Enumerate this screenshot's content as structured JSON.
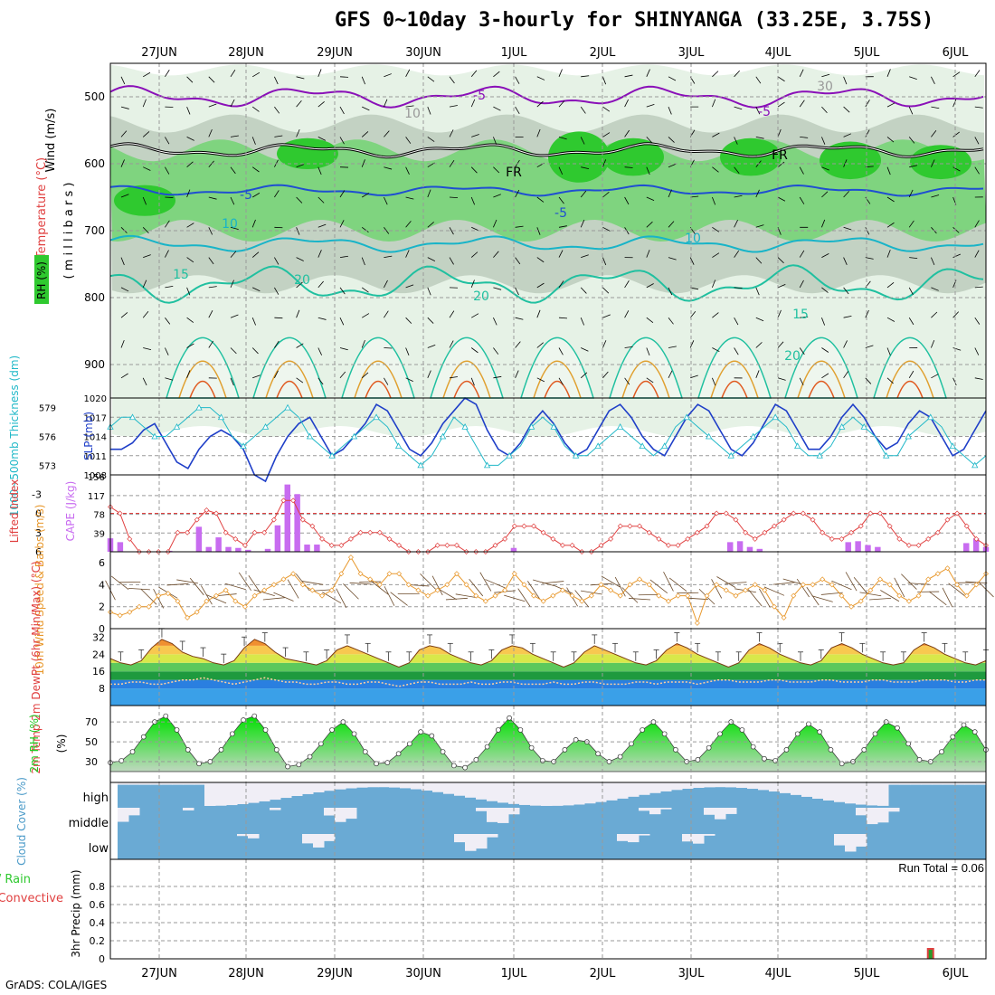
{
  "title": "GFS 0~10day 3-hourly for SHINYANGA (33.25E, 3.75S)",
  "credit": "GrADS: COLA/IGES",
  "colors": {
    "rh_light": "#e6f2e6",
    "rh_mid": "#7fd47f",
    "rh_dark": "#2fc92f",
    "rh_gray": "#c3d2c3",
    "temp_blue": "#1f4fd1",
    "temp_cyan": "#18b4c8",
    "temp_teal": "#20c0a0",
    "temp_orange": "#e0a030",
    "temp_red": "#e05a20",
    "purple": "#8a10b8",
    "cape": "#c86cf0",
    "li": "#e04040",
    "slp": "#1f3fc8",
    "thick": "#20b8c8",
    "wind": "#e8982c",
    "barb": "#6b4a2a",
    "cloud": "#6aaad4",
    "rh2m": "#22c822"
  },
  "chart_data": [
    {
      "type": "heatmap",
      "name": "upper",
      "ylabel_parts": [
        "Wind (m/s)",
        "Temperature (°C)",
        "RH (%)"
      ],
      "ylabel_units": "( m i l l i b a r s )",
      "x_ticks": [
        "27JUN",
        "28JUN",
        "29JUN",
        "30JUN",
        "1JUL",
        "2JUL",
        "3JUL",
        "4JUL",
        "5JUL",
        "6JUL"
      ],
      "y_ticks": [
        "500",
        "600",
        "700",
        "800",
        "900"
      ],
      "contour_labels": [
        "-5",
        "-5",
        "-5",
        "-5",
        "10",
        "10",
        "15",
        "20",
        "20",
        "15",
        "20",
        "30",
        "10",
        "FR",
        "FR"
      ]
    },
    {
      "type": "line",
      "name": "slp_thickness",
      "ylabel_left": "1000~500mb Thickness (dm)",
      "ylabel_right": "SLP (mb)",
      "left_ticks": [
        "579",
        "576",
        "573"
      ],
      "right_ticks": [
        "1020",
        "1017",
        "1014",
        "1011",
        "1008"
      ],
      "series": [
        {
          "name": "SLP",
          "values": [
            1012,
            1012,
            1013,
            1015,
            1016,
            1013,
            1010,
            1009,
            1012,
            1014,
            1015,
            1014,
            1012,
            1008,
            1007,
            1011,
            1014,
            1016,
            1017,
            1014,
            1011,
            1012,
            1014,
            1016,
            1019,
            1018,
            1015,
            1012,
            1011,
            1013,
            1016,
            1018,
            1020,
            1019,
            1015,
            1012,
            1011,
            1013,
            1016,
            1018,
            1016,
            1013,
            1011,
            1012,
            1015,
            1018,
            1019,
            1017,
            1014,
            1012,
            1011,
            1014,
            1017,
            1019,
            1018,
            1015,
            1012,
            1011,
            1013,
            1016,
            1019,
            1018,
            1015,
            1012,
            1012,
            1014,
            1017,
            1019,
            1017,
            1014,
            1012,
            1013,
            1016,
            1018,
            1017,
            1014,
            1011,
            1012,
            1015,
            1018
          ]
        },
        {
          "name": "Thickness",
          "values": [
            577,
            578,
            578,
            577,
            576,
            576,
            577,
            578,
            579,
            579,
            578,
            576,
            575,
            576,
            577,
            578,
            579,
            578,
            576,
            575,
            574,
            575,
            576,
            577,
            578,
            577,
            575,
            574,
            573,
            574,
            576,
            578,
            577,
            575,
            573,
            573,
            574,
            575,
            577,
            578,
            577,
            575,
            574,
            574,
            575,
            576,
            577,
            576,
            575,
            574,
            575,
            577,
            578,
            577,
            576,
            575,
            574,
            575,
            576,
            577,
            578,
            577,
            575,
            574,
            574,
            575,
            577,
            578,
            577,
            576,
            574,
            574,
            576,
            577,
            578,
            577,
            575,
            574,
            573,
            574
          ]
        }
      ]
    },
    {
      "type": "bar",
      "name": "cape_li",
      "ylabel_left": "Lifted Index",
      "ylabel_right": "CAPE (J/kg)",
      "li_ticks": [
        "-3",
        "0",
        "3",
        "6"
      ],
      "cape_ticks": [
        "156",
        "117",
        "78",
        "39"
      ],
      "series": [
        {
          "name": "CAPE",
          "values": [
            28,
            20,
            0,
            0,
            0,
            0,
            2,
            0,
            0,
            52,
            10,
            30,
            10,
            8,
            4,
            0,
            6,
            55,
            140,
            120,
            15,
            15,
            0,
            0,
            0,
            0,
            0,
            0,
            0,
            0,
            0,
            0,
            0,
            0,
            0,
            0,
            0,
            0,
            0,
            0,
            0,
            8,
            0,
            0,
            0,
            0,
            0,
            0,
            0,
            0,
            0,
            0,
            0,
            0,
            0,
            0,
            0,
            0,
            0,
            0,
            0,
            0,
            0,
            20,
            22,
            10,
            6,
            0,
            0,
            0,
            0,
            0,
            0,
            0,
            0,
            20,
            22,
            14,
            10,
            0,
            0,
            0,
            0,
            0,
            0,
            0,
            0,
            18,
            28,
            10
          ]
        },
        {
          "name": "Lifted Index",
          "values": [
            -1,
            0,
            4,
            6,
            6,
            6,
            6,
            3,
            3,
            1,
            -0.5,
            0,
            3,
            4,
            5,
            3,
            3,
            1,
            -2,
            -2,
            1,
            2,
            4,
            5,
            5,
            4,
            3,
            3,
            3,
            4,
            5,
            6,
            6,
            6,
            5,
            5,
            5,
            6,
            6,
            6,
            5,
            4,
            2,
            2,
            2,
            3,
            4,
            5,
            5,
            6,
            6,
            5,
            4,
            2,
            2,
            2,
            3,
            4,
            5,
            5,
            4,
            3,
            2,
            0,
            0,
            1,
            3,
            4,
            3,
            2,
            1,
            0,
            0,
            1,
            3,
            4,
            4,
            3,
            2,
            0,
            0,
            2,
            4,
            5,
            5,
            4,
            3,
            1,
            0,
            2,
            4,
            5
          ]
        }
      ]
    },
    {
      "type": "line",
      "name": "wind10m",
      "ylabel": "10m Wind Speed & Barbs (m/s)",
      "ticks": [
        "6",
        "4",
        "2",
        "0"
      ],
      "values": [
        1.5,
        1.2,
        1.5,
        2,
        2,
        3,
        3.2,
        2.5,
        1,
        1.5,
        2.5,
        3,
        3.5,
        2.5,
        2,
        3,
        3.5,
        4,
        4.5,
        5,
        4,
        3.5,
        3,
        3.5,
        5,
        6.5,
        5,
        4.5,
        4,
        5,
        5,
        4,
        3.5,
        3,
        3.5,
        4,
        5,
        4,
        3,
        2.5,
        3,
        3.5,
        5,
        4,
        3,
        2.5,
        3,
        3.5,
        3,
        2.5,
        3,
        4,
        3.5,
        3,
        4,
        4.5,
        4,
        3,
        2.5,
        3,
        3,
        0.5,
        3,
        4,
        3.5,
        3,
        3.5,
        4,
        3.5,
        2,
        1,
        3,
        4,
        4,
        4.5,
        4,
        3,
        2,
        2.5,
        3.5,
        4.5,
        4,
        3,
        2.5,
        3,
        4.5,
        5,
        5.5,
        4,
        3,
        4,
        5
      ]
    },
    {
      "type": "area",
      "name": "temp2m",
      "ylabel": "2m Temp 2m DewPt (6hr Min/Max) (°C)",
      "ticks": [
        "32",
        "24",
        "16",
        "8"
      ],
      "temp": [
        22,
        20,
        19,
        21,
        27,
        31,
        29,
        25,
        23,
        22,
        20,
        19,
        21,
        27,
        31,
        29,
        25,
        22,
        21,
        20,
        19,
        21,
        26,
        28,
        26,
        24,
        22,
        20,
        18,
        20,
        26,
        28,
        27,
        24,
        22,
        20,
        19,
        21,
        26,
        28,
        27,
        24,
        22,
        20,
        18,
        20,
        25,
        28,
        26,
        24,
        22,
        20,
        19,
        21,
        26,
        29,
        27,
        24,
        22,
        20,
        18,
        20,
        26,
        29,
        27,
        24,
        22,
        20,
        19,
        21,
        27,
        29,
        27,
        24,
        22,
        20,
        19,
        20,
        26,
        29,
        27,
        24,
        22,
        20,
        19,
        21
      ],
      "dew": [
        10,
        10,
        11,
        11,
        10,
        10,
        11,
        12,
        12,
        13,
        12,
        11,
        10,
        11,
        12,
        13,
        12,
        11,
        11,
        10,
        10,
        11,
        11,
        10,
        10,
        11,
        11,
        10,
        9,
        10,
        11,
        11,
        10,
        10,
        10,
        11,
        10,
        10,
        11,
        11,
        10,
        10,
        10,
        11,
        10,
        10,
        11,
        11,
        10,
        10,
        10,
        11,
        11,
        10,
        11,
        11,
        11,
        10,
        11,
        12,
        12,
        11,
        11,
        11,
        12,
        12,
        11,
        11,
        11,
        12,
        12,
        11,
        11,
        11,
        12,
        12,
        11,
        11,
        11,
        12,
        12,
        12,
        11,
        11,
        12,
        12
      ]
    },
    {
      "type": "area",
      "name": "rh2m",
      "ylabel": "2m RH (%)",
      "ticks": [
        "70",
        "50",
        "30"
      ],
      "values": [
        29,
        31,
        40,
        55,
        70,
        76,
        62,
        42,
        28,
        30,
        42,
        58,
        72,
        76,
        62,
        42,
        25,
        27,
        35,
        48,
        62,
        70,
        58,
        40,
        28,
        29,
        38,
        48,
        60,
        56,
        40,
        26,
        24,
        32,
        45,
        62,
        74,
        62,
        44,
        31,
        30,
        42,
        52,
        50,
        38,
        30,
        35,
        48,
        62,
        70,
        58,
        42,
        30,
        32,
        44,
        58,
        70,
        62,
        45,
        33,
        31,
        42,
        58,
        68,
        60,
        42,
        28,
        30,
        42,
        58,
        70,
        64,
        48,
        32,
        30,
        40,
        55,
        67,
        60,
        42
      ]
    },
    {
      "type": "heatmap",
      "name": "cloud",
      "ylabel": "Cloud Cover (%)",
      "row_labels": [
        "high",
        "middle",
        "low"
      ]
    },
    {
      "type": "bar",
      "name": "precip",
      "ylabel_left": "Total / Rain",
      "ylabel_left2": "Convective",
      "ylabel": "3hr Precip (mm)",
      "ticks": [
        "0.8",
        "0.6",
        "0.4",
        "0.2",
        "0"
      ],
      "run_total": "Run Total = 0.06",
      "values": [
        {
          "i": 74,
          "v": 0.06
        }
      ]
    }
  ]
}
